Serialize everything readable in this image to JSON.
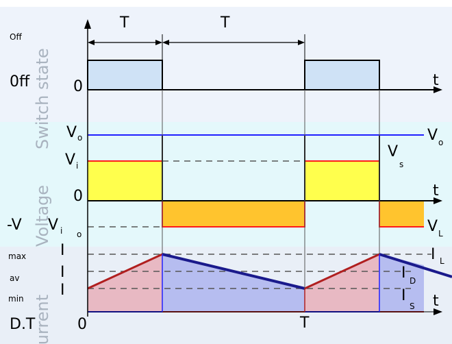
{
  "colors": {
    "switch_bg": "#eef3fb",
    "voltage_bg": "#e4f8fb",
    "current_bg": "#e9eff7",
    "on_fill": "#cfe2f6",
    "vi_fill": "#ffff4d",
    "vl_fill": "#ffc42e",
    "inductor_current": "#1a1a8c",
    "source_current": "#b01f1f",
    "diode_current_fill": "#b6bdf0",
    "source_current_fill": "#e8b9c3",
    "vo_color": "#2020ff",
    "vl_color": "#ff1a1a"
  },
  "labels": {
    "period_1": "T",
    "period_2": "T",
    "off_top": "Off",
    "off_state": "0ff",
    "zero_switch": "0",
    "t_switch": "t",
    "section_switch": "Switch state",
    "vo_left_main": "V",
    "vo_left_sub": "o",
    "vi_left_main": "V",
    "vi_left_sub": "i",
    "zero_voltage": "0",
    "t_voltage": "t",
    "neg_v_left": "-V",
    "neg_v_i": "V",
    "neg_v_i_sub": "i",
    "neg_v_o_sub": "o",
    "section_voltage": "Voltage",
    "vo_right_main": "V",
    "vo_right_sub": "o",
    "vs_main": "V",
    "vs_sub": "s",
    "vl_main": "V",
    "vl_sub": "L",
    "max_sub": "max",
    "max_main": "I",
    "av_sub": "av",
    "av_main": "I",
    "min_sub": "min",
    "min_main": "I",
    "il_main": "I",
    "il_sub": "L",
    "id_main": "I",
    "id_sub": "D",
    "is_main": "I",
    "is_sub": "S",
    "t_current": "t",
    "section_current": "Current",
    "dt_label": "D.T",
    "zero_time": "0",
    "t_time": "T"
  }
}
